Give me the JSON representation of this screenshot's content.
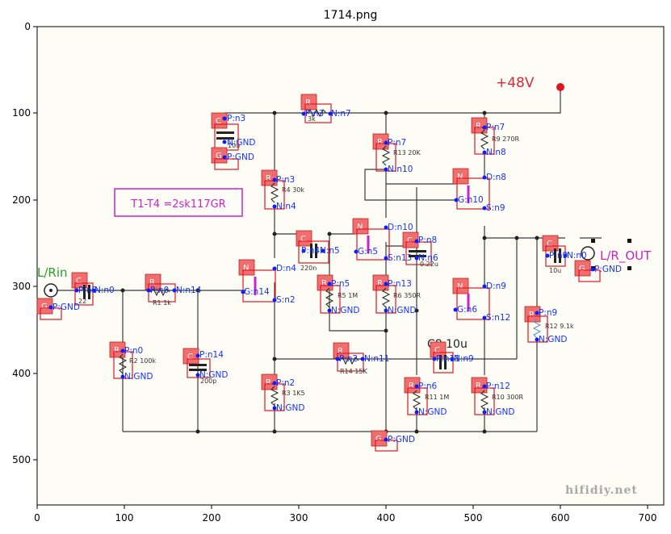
{
  "title": "1714.png",
  "x_ticks": [
    "0",
    "100",
    "200",
    "300",
    "400",
    "500",
    "600",
    "700"
  ],
  "y_ticks": [
    "0",
    "100",
    "200",
    "300",
    "400",
    "500"
  ],
  "supply_label": "+48V",
  "note_label": "T1-T4 =2sk117GR",
  "input_label": "L/Rin",
  "output_label": "L/R_OUT",
  "watermark": "hifidiy.net",
  "extra_label": "C8 10u",
  "colors": {
    "box": "#e0141e",
    "tag": "#f06e6e",
    "pin": "#0a1eff",
    "wire": "#3a3a3a",
    "supply": "#d8283a",
    "note": "#cc22cc",
    "input": "#2a9d2a"
  },
  "components": [
    {
      "id": "c_top",
      "tag": "C",
      "value": "10u",
      "pins": [
        "P:n3",
        "N:GND"
      ]
    },
    {
      "id": "g1",
      "tag": "G",
      "value": "",
      "pins": [
        "P:GND"
      ]
    },
    {
      "id": "r_top",
      "tag": "R",
      "value": "3k",
      "pins": [
        "P:n3",
        "N:n7"
      ]
    },
    {
      "id": "r4",
      "tag": "R",
      "value": "R4 30k",
      "pins": [
        "P:n3",
        "N:n4"
      ]
    },
    {
      "id": "r13",
      "tag": "R",
      "value": "R13 20K",
      "pins": [
        "P:n7",
        "N:n10"
      ]
    },
    {
      "id": "r9",
      "tag": "R",
      "value": "R9 270R",
      "pins": [
        "P:n7",
        "N:n8"
      ]
    },
    {
      "id": "n_top",
      "tag": "N",
      "value": "",
      "pins": [
        "D:n8",
        "G:n10",
        "S:n9"
      ]
    },
    {
      "id": "c2",
      "tag": "C",
      "value": "220n",
      "pins": [
        "P:n4",
        "N:n5"
      ]
    },
    {
      "id": "n2",
      "tag": "N",
      "value": "",
      "pins": [
        "D:n10",
        "G:n5",
        "S:n13"
      ]
    },
    {
      "id": "c3",
      "tag": "C",
      "value": "0.22u",
      "pins": [
        "P:n8",
        "N:n6"
      ]
    },
    {
      "id": "c7",
      "tag": "C",
      "value": "10u",
      "pins": [
        "P:n9",
        "N:n0"
      ]
    },
    {
      "id": "g_out",
      "tag": "G",
      "value": "",
      "pins": [
        "P:GND"
      ]
    },
    {
      "id": "n1",
      "tag": "N",
      "value": "",
      "pins": [
        "D:n4",
        "G:n14",
        "S:n2"
      ]
    },
    {
      "id": "r5",
      "tag": "R",
      "value": "R5 1M",
      "pins": [
        "P:n5",
        "N:GND"
      ]
    },
    {
      "id": "r6",
      "tag": "R",
      "value": "R6 350R",
      "pins": [
        "P:n13",
        "N:GND"
      ]
    },
    {
      "id": "n3",
      "tag": "N",
      "value": "",
      "pins": [
        "D:n9",
        "G:n6",
        "S:n12"
      ]
    },
    {
      "id": "r12",
      "tag": "R",
      "value": "R12 9.1k",
      "pins": [
        "P:n9",
        "N:GND"
      ]
    },
    {
      "id": "c_in",
      "tag": "C",
      "value": "22",
      "pins": [
        "P:n0",
        "N:n0"
      ]
    },
    {
      "id": "g_in",
      "tag": "G",
      "value": "",
      "pins": [
        "P:GND"
      ]
    },
    {
      "id": "r1",
      "tag": "R",
      "value": "R1 1k",
      "pins": [
        "P:n0",
        "N:n14"
      ]
    },
    {
      "id": "r2",
      "tag": "R",
      "value": "R2 100k",
      "pins": [
        "P:n0",
        "N:GND"
      ]
    },
    {
      "id": "c1",
      "tag": "C",
      "value": "200p",
      "pins": [
        "P:n14",
        "N:GND"
      ]
    },
    {
      "id": "r14",
      "tag": "R",
      "value": "R14 15K",
      "pins": [
        "P:n2",
        "N:n11"
      ]
    },
    {
      "id": "c8",
      "tag": "C",
      "value": "",
      "pins": [
        "P:n11",
        "N:n9"
      ]
    },
    {
      "id": "r3",
      "tag": "R",
      "value": "R3 1K5",
      "pins": [
        "P:n2",
        "N:GND"
      ]
    },
    {
      "id": "r11",
      "tag": "R",
      "value": "R11 1M",
      "pins": [
        "P:n6",
        "N:GND"
      ]
    },
    {
      "id": "r10",
      "tag": "R",
      "value": "R10 300R",
      "pins": [
        "P:n12",
        "N:GND"
      ]
    },
    {
      "id": "g_bot",
      "tag": "G",
      "value": "",
      "pins": [
        "P:GND"
      ]
    }
  ]
}
